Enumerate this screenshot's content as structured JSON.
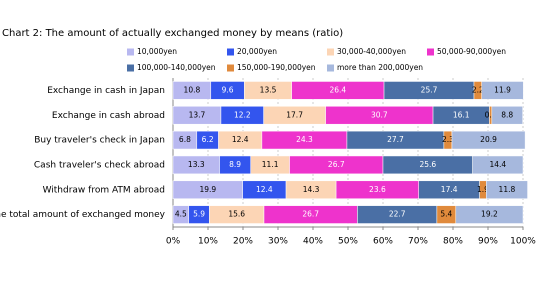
{
  "chart_data": {
    "type": "stacked-bar-horizontal",
    "title": "Chart 2: The amount of actually exchanged money by means (ratio)",
    "categories": [
      "Exchange in cash in Japan",
      "Exchange in cash abroad",
      "Buy traveler's check in Japan",
      "Cash traveler's check abroad",
      "Withdraw from ATM abroad",
      "The total amount of exchanged money"
    ],
    "series": [
      {
        "name": "10,000yen",
        "color": "#b8b8f0",
        "values": [
          10.8,
          13.7,
          6.8,
          13.3,
          19.9,
          4.5
        ]
      },
      {
        "name": "20,000yen",
        "color": "#3355ee",
        "values": [
          9.6,
          12.2,
          6.2,
          8.9,
          12.4,
          5.9
        ]
      },
      {
        "name": "30,000-40,000yen",
        "color": "#fcd5b5",
        "values": [
          13.5,
          17.7,
          12.4,
          11.1,
          14.3,
          15.6
        ]
      },
      {
        "name": "50,000-90,000yen",
        "color": "#ee33cc",
        "values": [
          26.4,
          30.7,
          24.3,
          26.7,
          23.6,
          26.7
        ]
      },
      {
        "name": "100,000-140,000yen",
        "color": "#4a6fa5",
        "values": [
          25.7,
          16.1,
          27.7,
          25.6,
          17.4,
          22.7
        ]
      },
      {
        "name": "150,000-190,000yen",
        "color": "#e08a3c",
        "values": [
          2.2,
          0.7,
          2.3,
          0,
          1.9,
          5.4
        ]
      },
      {
        "name": "more than 200,000yen",
        "color": "#a6b8dd",
        "values": [
          11.9,
          8.8,
          20.9,
          14.4,
          11.8,
          19.2
        ]
      }
    ],
    "xlim": [
      0,
      100
    ],
    "xticks": [
      {
        "value": 0,
        "label": "0%"
      },
      {
        "value": 10,
        "label": "10%"
      },
      {
        "value": 20,
        "label": "20%"
      },
      {
        "value": 30,
        "label": "30%"
      },
      {
        "value": 40,
        "label": "40%"
      },
      {
        "value": 50,
        "label": "50%"
      },
      {
        "value": 60,
        "label": "60%"
      },
      {
        "value": 70,
        "label": "70%"
      },
      {
        "value": 80,
        "label": "80%"
      },
      {
        "value": 90,
        "label": "90%"
      },
      {
        "value": 100,
        "label": "100%"
      }
    ],
    "grid": true
  }
}
